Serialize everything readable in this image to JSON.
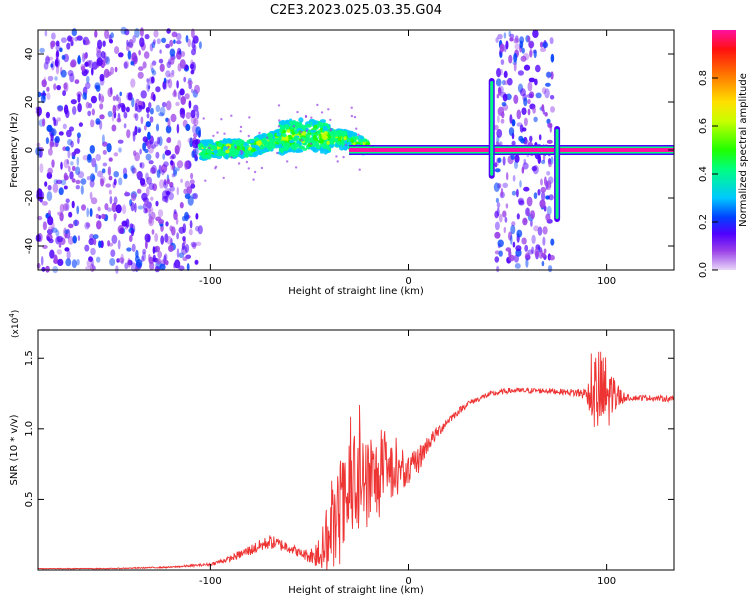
{
  "title": "C2E3.2023.025.03.35.G04",
  "chart_data": [
    {
      "type": "heatmap",
      "name": "spectrogram",
      "xlabel": "Height of straight line (km)",
      "ylabel": "Frequency (Hz)",
      "xlim": [
        -187,
        134
      ],
      "ylim": [
        -50,
        50
      ],
      "x_ticks": [
        -100,
        0,
        100
      ],
      "y_ticks": [
        -40,
        -20,
        0,
        20,
        40
      ],
      "colorbar": {
        "label": "Normalized spectral amplitude",
        "range": [
          0,
          1
        ],
        "ticks": [
          0.0,
          0.2,
          0.4,
          0.6,
          0.8
        ]
      },
      "regions": [
        {
          "x": [
            -187,
            -105
          ],
          "y": [
            -50,
            50
          ],
          "level": 0.15,
          "kind": "broadband noise"
        },
        {
          "x": [
            44,
            73
          ],
          "y": [
            -50,
            50
          ],
          "level": 0.15,
          "kind": "broadband noise"
        }
      ],
      "tone": {
        "x": [
          -30,
          0,
          40,
          80,
          134
        ],
        "y": [
          0,
          0,
          0,
          0,
          0
        ],
        "level": 0.95
      },
      "transition": {
        "x": [
          -105,
          -80,
          -60,
          -45,
          -30,
          -20
        ],
        "y_center": [
          0,
          1,
          6,
          6,
          4,
          1
        ],
        "level": 0.45
      },
      "spikes": [
        {
          "x": 42,
          "y": [
            -12,
            30
          ],
          "level": 0.4
        },
        {
          "x": 75,
          "y": [
            -30,
            10
          ],
          "level": 0.4
        }
      ]
    },
    {
      "type": "line",
      "name": "snr",
      "xlabel": "Height of straight line (km)",
      "ylabel": "SNR (10 * v/v)",
      "y_multiplier": "(x10",
      "y_exponent": "4",
      "xlim": [
        -187,
        134
      ],
      "ylim": [
        0,
        1.7
      ],
      "x_ticks": [
        -100,
        0,
        100
      ],
      "y_ticks": [
        0.5,
        1.0,
        1.5
      ],
      "color": "#ee3333",
      "x": [
        -187,
        -150,
        -120,
        -100,
        -90,
        -80,
        -70,
        -60,
        -55,
        -50,
        -45,
        -40,
        -35,
        -30,
        -25,
        -20,
        -15,
        -10,
        -5,
        0,
        5,
        10,
        20,
        30,
        40,
        50,
        60,
        70,
        80,
        90,
        95,
        100,
        105,
        110,
        120,
        134
      ],
      "y": [
        0.01,
        0.01,
        0.02,
        0.04,
        0.08,
        0.14,
        0.2,
        0.16,
        0.12,
        0.1,
        0.12,
        0.22,
        0.38,
        0.5,
        0.62,
        0.6,
        0.65,
        0.7,
        0.68,
        0.7,
        0.78,
        0.9,
        1.06,
        1.18,
        1.24,
        1.27,
        1.27,
        1.27,
        1.26,
        1.25,
        1.25,
        1.23,
        1.23,
        1.22,
        1.22,
        1.21
      ],
      "noise": [
        0.002,
        0.003,
        0.005,
        0.01,
        0.02,
        0.04,
        0.05,
        0.04,
        0.03,
        0.05,
        0.12,
        0.25,
        0.35,
        0.4,
        0.4,
        0.35,
        0.3,
        0.22,
        0.15,
        0.1,
        0.1,
        0.06,
        0.03,
        0.02,
        0.02,
        0.02,
        0.02,
        0.02,
        0.02,
        0.05,
        0.35,
        0.3,
        0.1,
        0.02,
        0.02,
        0.02
      ]
    }
  ]
}
